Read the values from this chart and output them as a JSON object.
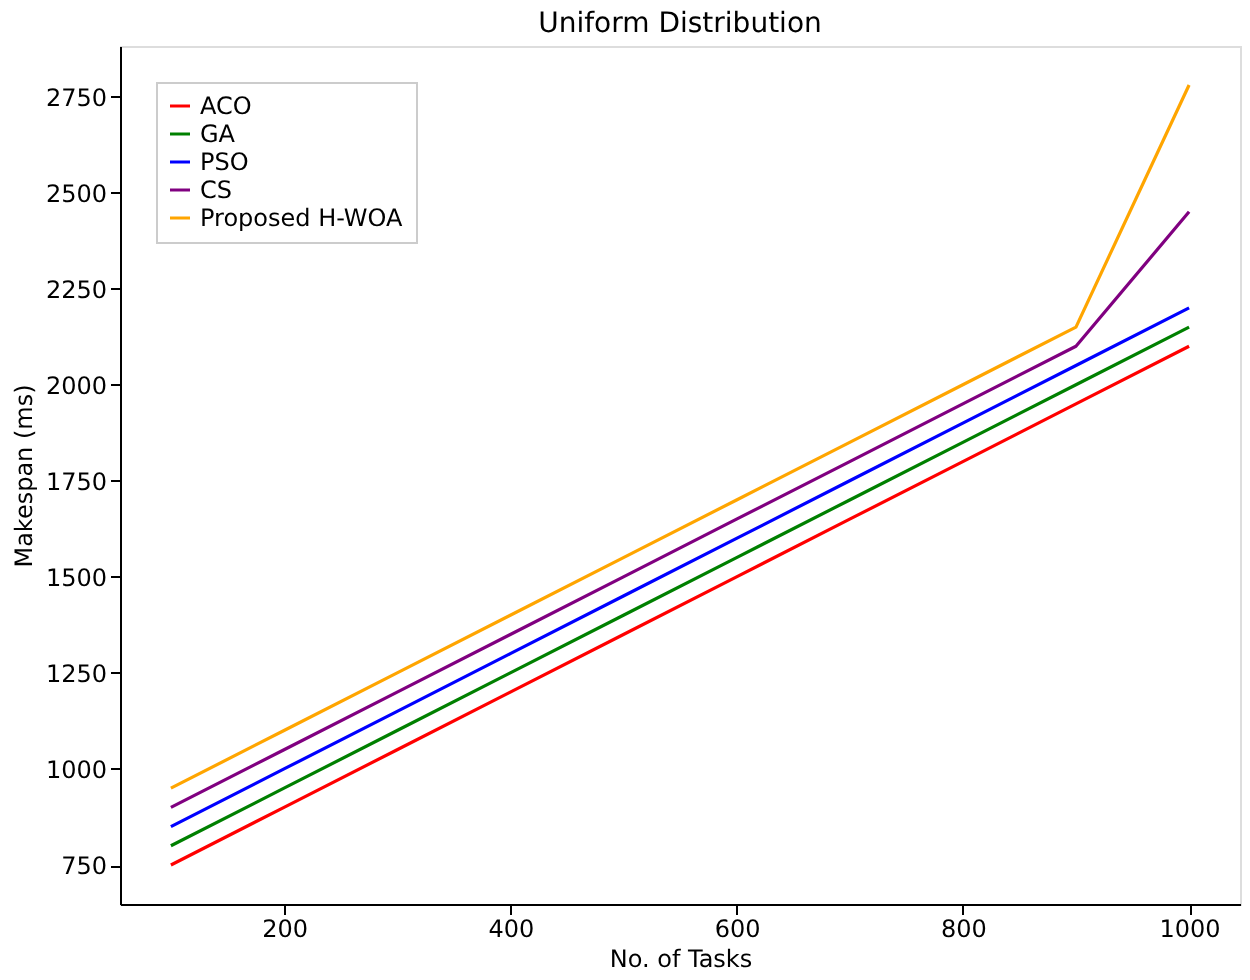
{
  "chart_data": {
    "type": "line",
    "title": "Uniform Distribution",
    "xlabel": "No. of Tasks",
    "ylabel": "Makespan (ms)",
    "x": [
      100,
      200,
      300,
      400,
      500,
      600,
      700,
      800,
      900,
      1000
    ],
    "series": [
      {
        "name": "ACO",
        "color": "#ff0000",
        "values": [
          750,
          900,
          1050,
          1200,
          1350,
          1500,
          1650,
          1800,
          1950,
          2100
        ]
      },
      {
        "name": "GA",
        "color": "#008000",
        "values": [
          800,
          950,
          1100,
          1250,
          1400,
          1550,
          1700,
          1850,
          2000,
          2150
        ]
      },
      {
        "name": "PSO",
        "color": "#0000ff",
        "values": [
          850,
          1000,
          1150,
          1300,
          1450,
          1600,
          1750,
          1900,
          2050,
          2200
        ]
      },
      {
        "name": "CS",
        "color": "#800080",
        "values": [
          900,
          1050,
          1200,
          1350,
          1500,
          1650,
          1800,
          1950,
          2100,
          2450
        ]
      },
      {
        "name": "Proposed H-WOA",
        "color": "#ffa500",
        "values": [
          950,
          1100,
          1250,
          1400,
          1550,
          1700,
          1850,
          2000,
          2150,
          2780
        ]
      }
    ],
    "xlim": [
      55,
      1045
    ],
    "xticks": [
      200,
      400,
      600,
      800,
      1000
    ],
    "ylim": [
      648.5,
      2881.5
    ],
    "yticks": [
      750,
      1000,
      1250,
      1500,
      1750,
      2000,
      2250,
      2500,
      2750
    ],
    "grid": false,
    "legend": "top left",
    "marker": "none",
    "line_style": "solid"
  }
}
